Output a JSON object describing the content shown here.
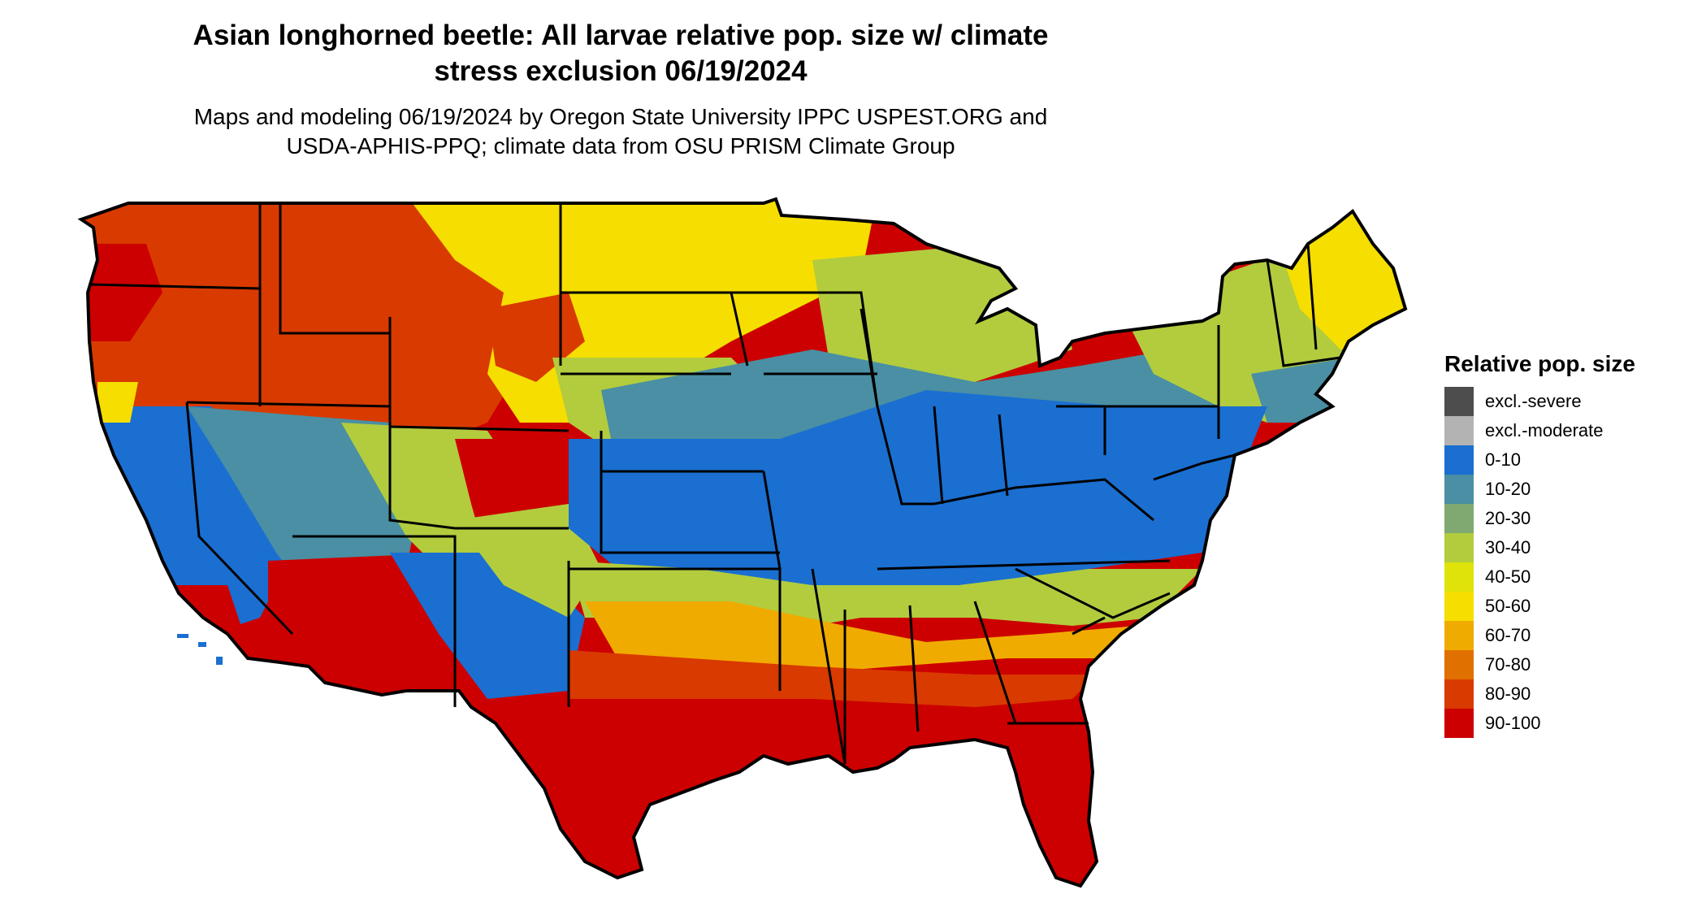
{
  "title_line1": "Asian longhorned beetle: All larvae relative pop. size w/ climate",
  "title_line2": "stress exclusion 06/19/2024",
  "subtitle_line1": "Maps and modeling 06/19/2024 by Oregon State University IPPC USPEST.ORG and",
  "subtitle_line2": "USDA-APHIS-PPQ; climate data from OSU PRISM Climate Group",
  "legend": {
    "title": "Relative pop. size",
    "items": [
      {
        "label": "excl.-severe",
        "color": "#4d4d4d"
      },
      {
        "label": "excl.-moderate",
        "color": "#b3b3b3"
      },
      {
        "label": "0-10",
        "color": "#1a6fd1"
      },
      {
        "label": "10-20",
        "color": "#4a8fa3"
      },
      {
        "label": "20-30",
        "color": "#7fa970"
      },
      {
        "label": "30-40",
        "color": "#b2cc3e"
      },
      {
        "label": "40-50",
        "color": "#dfe30a"
      },
      {
        "label": "50-60",
        "color": "#f5de00"
      },
      {
        "label": "60-70",
        "color": "#f0ab00"
      },
      {
        "label": "70-80",
        "color": "#e07000"
      },
      {
        "label": "80-90",
        "color": "#d93a00"
      },
      {
        "label": "90-100",
        "color": "#cc0000"
      }
    ]
  },
  "map": {
    "region": "contiguous United States",
    "dominant_classes": {
      "northwest_and_rockies": "80-90",
      "northern_plains": "50-60",
      "central_and_midwest": "0-10",
      "southeast_and_texas": "90-100"
    }
  }
}
